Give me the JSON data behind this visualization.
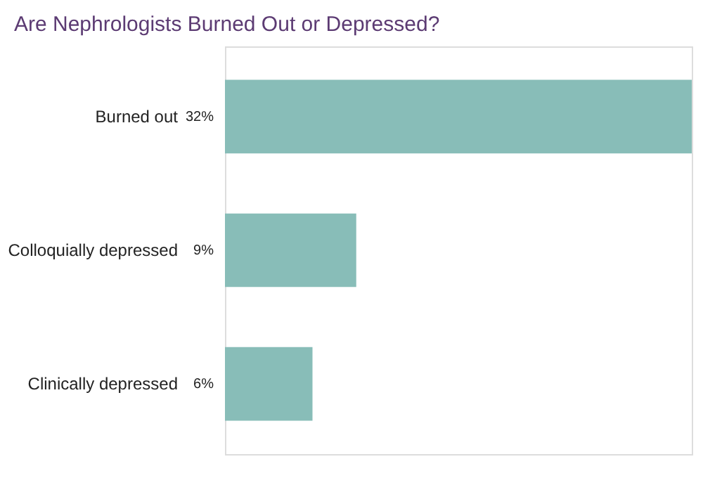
{
  "chart_data": {
    "type": "bar",
    "title": "Are Nephrologists Burned Out or Depressed?",
    "orientation": "horizontal",
    "categories": [
      "Burned out",
      "Colloquially depressed",
      "Clinically depressed"
    ],
    "values": [
      32,
      9,
      6
    ],
    "color": "#88bdb8",
    "value_labels": [
      "32%",
      "9%",
      "6%"
    ],
    "xlim": [
      0,
      32
    ],
    "tick_labels": "y",
    "grid": false
  }
}
